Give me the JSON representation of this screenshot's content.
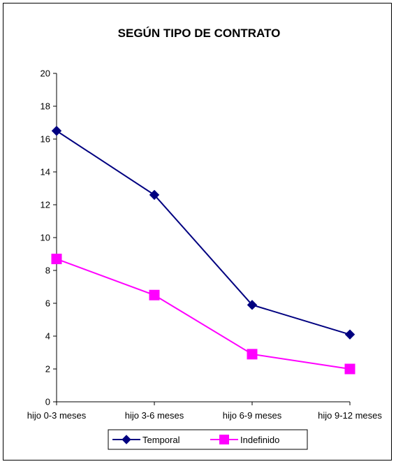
{
  "chart_data": {
    "type": "line",
    "title": "SEGÚN TIPO DE CONTRATO",
    "xlabel": "",
    "ylabel": "",
    "categories": [
      "hijo 0-3 meses",
      "hijo 3-6 meses",
      "hijo 6-9 meses",
      "hijo 9-12 meses"
    ],
    "ylim": [
      0,
      20
    ],
    "yticks": [
      0,
      2,
      4,
      6,
      8,
      10,
      12,
      14,
      16,
      18,
      20
    ],
    "grid": false,
    "legend_position": "bottom",
    "series": [
      {
        "name": "Temporal",
        "values": [
          16.5,
          12.6,
          5.9,
          4.1
        ],
        "color": "#000080",
        "marker": "diamond"
      },
      {
        "name": "Indefinido",
        "values": [
          8.7,
          6.5,
          2.9,
          2.0
        ],
        "color": "#ff00ff",
        "marker": "square"
      }
    ]
  }
}
